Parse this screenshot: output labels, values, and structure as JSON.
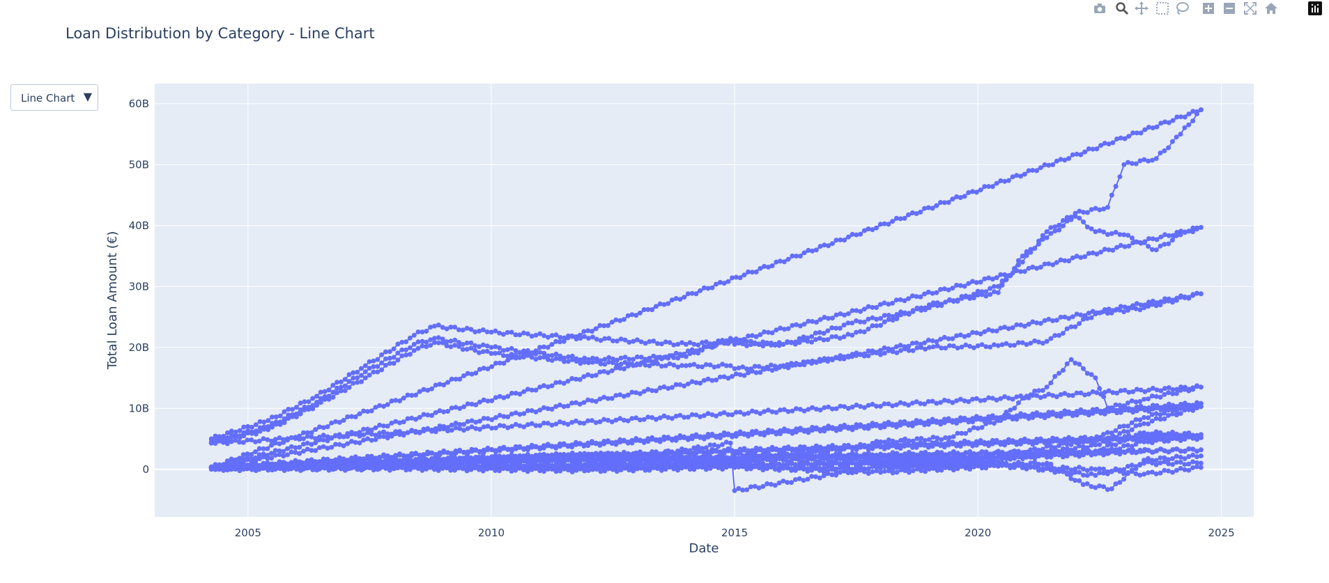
{
  "title": "Loan Distribution by Category - Line Chart",
  "dropdown": {
    "selected": "Line Chart",
    "arrow": "▼"
  },
  "modebar": {
    "icons": [
      "camera-icon",
      "zoom-icon",
      "pan-icon",
      "box-select-icon",
      "lasso-select-icon",
      "zoom-in-icon",
      "zoom-out-icon",
      "autoscale-icon",
      "reset-axes-icon",
      "plotly-logo-icon"
    ]
  },
  "colors": {
    "line": "#636efa",
    "plot_bg": "#e5ecf6",
    "grid": "#ffffff",
    "text": "#2a3f5f"
  },
  "chart_data": {
    "type": "line",
    "title": "Loan Distribution by Category - Line Chart",
    "xlabel": "Date",
    "ylabel": "Total Loan Amount (€)",
    "xlim": [
      "2003-02-01",
      "2025-09-01"
    ],
    "ylim": [
      -7800000000,
      63300000000
    ],
    "x_ticks": [
      {
        "value": "2005-01-01",
        "label": "2005"
      },
      {
        "value": "2010-01-01",
        "label": "2010"
      },
      {
        "value": "2015-01-01",
        "label": "2015"
      },
      {
        "value": "2020-01-01",
        "label": "2020"
      },
      {
        "value": "2025-01-01",
        "label": "2025"
      }
    ],
    "y_ticks": [
      {
        "value": 0,
        "label": "0"
      },
      {
        "value": 10000000000,
        "label": "10B"
      },
      {
        "value": 20000000000,
        "label": "20B"
      },
      {
        "value": 30000000000,
        "label": "30B"
      },
      {
        "value": 40000000000,
        "label": "40B"
      },
      {
        "value": 50000000000,
        "label": "50B"
      },
      {
        "value": 60000000000,
        "label": "60B"
      }
    ],
    "grid": true,
    "legend": "none",
    "series": [
      {
        "x": [
          "2004-04-01",
          "2005-06-01",
          "2006-06-01",
          "2007-06-01",
          "2008-06-01",
          "2008-11-01",
          "2010-01-01",
          "2012-01-01",
          "2014-01-01",
          "2014-12-01",
          "2016-01-01",
          "2017-06-01",
          "2019-01-01",
          "2020-06-01",
          "2020-12-01",
          "2021-06-01",
          "2022-01-01",
          "2022-09-01",
          "2023-01-01",
          "2023-09-01",
          "2024-03-01",
          "2024-08-01",
          "2004-04-01",
          "2024-08-01"
        ],
        "y": [
          5000000000,
          8000000000,
          12000000000,
          17000000000,
          22000000000,
          23500000000,
          22500000000,
          21500000000,
          20500000000,
          21000000000,
          20500000000,
          24000000000,
          26500000000,
          30000000000,
          34000000000,
          39000000000,
          42000000000,
          43000000000,
          50000000000,
          51000000000,
          55000000000,
          59000000000,
          300000000,
          59000000000
        ]
      },
      {
        "x": [
          "2004-04-01",
          "2005-06-01",
          "2006-06-01",
          "2007-06-01",
          "2008-06-01",
          "2008-11-01",
          "2010-01-01",
          "2012-01-01",
          "2014-01-01",
          "2014-12-01",
          "2015-01-01",
          "2016-01-01",
          "2017-06-01",
          "2019-01-01",
          "2020-06-01",
          "2020-12-01",
          "2021-06-01",
          "2022-01-01",
          "2022-06-01",
          "2023-01-01",
          "2023-09-01",
          "2024-03-01",
          "2024-08-01",
          "2004-04-01",
          "2024-08-01"
        ],
        "y": [
          4500000000,
          7000000000,
          11000000000,
          16000000000,
          20500000000,
          21500000000,
          20000000000,
          18000000000,
          18500000000,
          21500000000,
          20500000000,
          20500000000,
          22000000000,
          27000000000,
          29000000000,
          35000000000,
          38000000000,
          41500000000,
          39000000000,
          38500000000,
          36000000000,
          38500000000,
          39700000000,
          300000000,
          39700000000
        ]
      },
      {
        "x": [
          "2004-04-01",
          "2005-06-01",
          "2006-06-01",
          "2007-06-01",
          "2008-06-01",
          "2008-11-01",
          "2010-01-01",
          "2012-01-01",
          "2014-01-01",
          "2014-12-01",
          "2015-01-01",
          "2016-01-01",
          "2017-06-01",
          "2019-01-01",
          "2020-06-01",
          "2021-06-01",
          "2022-06-01",
          "2023-06-01",
          "2024-08-01",
          "2004-04-01",
          "2024-08-01"
        ],
        "y": [
          4300000000,
          6500000000,
          10500000000,
          15000000000,
          19500000000,
          20800000000,
          19000000000,
          17500000000,
          17000000000,
          17000000000,
          16500000000,
          17000000000,
          18500000000,
          20000000000,
          20300000000,
          21000000000,
          25500000000,
          26500000000,
          28800000000,
          300000000,
          28800000000
        ]
      },
      {
        "x": [
          "2004-04-01",
          "2010-01-01",
          "2015-01-01",
          "2017-06-01",
          "2018-01-01",
          "2019-06-01",
          "2020-06-01",
          "2021-01-01",
          "2021-06-01",
          "2021-12-01",
          "2022-06-01",
          "2022-09-01",
          "2023-06-01",
          "2024-08-01",
          "2004-04-01",
          "2024-08-01"
        ],
        "y": [
          400000000,
          700000000,
          1200000000,
          3500000000,
          4500000000,
          5200000000,
          8000000000,
          12000000000,
          13500000000,
          18000000000,
          15000000000,
          10000000000,
          11500000000,
          13500000000,
          4300000000,
          13500000000
        ]
      },
      {
        "x": [
          "2004-04-01",
          "2010-01-01",
          "2015-01-01",
          "2020-01-01",
          "2022-06-01",
          "2023-06-01",
          "2024-08-01",
          "2004-04-01",
          "2024-08-01"
        ],
        "y": [
          300000000,
          500000000,
          800000000,
          1500000000,
          5000000000,
          8500000000,
          10800000000,
          300000000,
          10800000000
        ]
      },
      {
        "x": [
          "2004-04-01",
          "2010-01-01",
          "2015-01-01",
          "2020-01-01",
          "2022-06-01",
          "2023-06-01",
          "2024-08-01",
          "2004-04-01",
          "2024-08-01"
        ],
        "y": [
          200000000,
          400000000,
          600000000,
          1000000000,
          4000000000,
          7500000000,
          10300000000,
          200000000,
          10300000000
        ]
      },
      {
        "x": [
          "2004-04-01",
          "2008-01-01",
          "2012-01-01",
          "2015-01-01",
          "2018-01-01",
          "2021-01-01",
          "2022-06-01",
          "2023-06-01",
          "2024-08-01",
          "2004-04-01",
          "2024-08-01"
        ],
        "y": [
          400000000,
          1500000000,
          2500000000,
          2000000000,
          2500000000,
          2800000000,
          3000000000,
          6000000000,
          5700000000,
          300000000,
          5700000000
        ]
      },
      {
        "x": [
          "2004-04-01",
          "2008-01-01",
          "2012-01-01",
          "2015-01-01",
          "2018-01-01",
          "2021-01-01",
          "2022-06-01",
          "2023-06-01",
          "2024-08-01",
          "2004-04-01",
          "2024-08-01"
        ],
        "y": [
          300000000,
          1000000000,
          1800000000,
          1500000000,
          1500000000,
          2000000000,
          2500000000,
          4500000000,
          5200000000,
          200000000,
          5200000000
        ]
      },
      {
        "x": [
          "2004-04-01",
          "2010-01-01",
          "2014-12-01",
          "2015-01-01",
          "2018-01-01",
          "2021-01-01",
          "2022-06-01",
          "2023-06-01",
          "2024-08-01",
          "2004-04-01",
          "2024-08-01"
        ],
        "y": [
          200000000,
          1500000000,
          1500000000,
          2500000000,
          2000000000,
          2200000000,
          2500000000,
          3000000000,
          3200000000,
          200000000,
          3200000000
        ]
      },
      {
        "x": [
          "2004-04-01",
          "2008-01-01",
          "2012-01-01",
          "2014-12-01",
          "2015-01-01",
          "2018-01-01",
          "2021-06-01",
          "2022-03-01",
          "2022-10-01",
          "2023-06-01",
          "2024-08-01"
        ],
        "y": [
          300000000,
          600000000,
          800000000,
          4300000000,
          -3500000000,
          500000000,
          1000000000,
          -2500000000,
          -3200000000,
          1500000000,
          2200000000
        ]
      },
      {
        "x": [
          "2004-04-01",
          "2008-01-01",
          "2012-01-01",
          "2015-01-01",
          "2018-01-01",
          "2020-06-01",
          "2022-06-01",
          "2023-06-01",
          "2024-08-01"
        ],
        "y": [
          100000000,
          300000000,
          200000000,
          500000000,
          200000000,
          800000000,
          -1000000000,
          1000000000,
          1000000000
        ]
      },
      {
        "x": [
          "2004-04-01",
          "2008-01-01",
          "2012-01-01",
          "2015-01-01",
          "2018-01-01",
          "2020-06-01",
          "2022-06-01",
          "2023-06-01",
          "2024-08-01"
        ],
        "y": [
          0,
          100000000,
          -200000000,
          300000000,
          -500000000,
          500000000,
          0,
          -800000000,
          300000000
        ]
      }
    ]
  }
}
